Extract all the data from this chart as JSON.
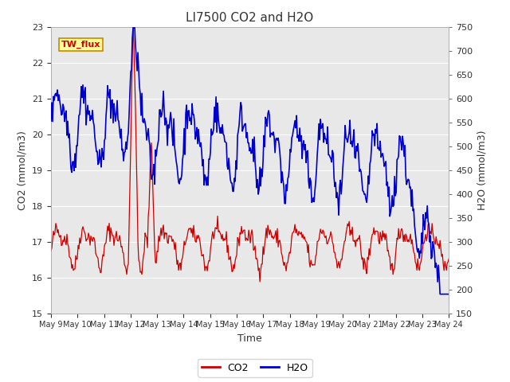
{
  "title": "LI7500 CO2 and H2O",
  "xlabel": "Time",
  "ylabel_left": "CO2 (mmol/m3)",
  "ylabel_right": "H2O (mmol/m3)",
  "ylim_left": [
    15.0,
    23.0
  ],
  "ylim_right": [
    150,
    750
  ],
  "yticks_left": [
    15.0,
    16.0,
    17.0,
    18.0,
    19.0,
    20.0,
    21.0,
    22.0,
    23.0
  ],
  "yticks_right": [
    150,
    200,
    250,
    300,
    350,
    400,
    450,
    500,
    550,
    600,
    650,
    700,
    750
  ],
  "xtick_labels": [
    "May 9",
    "May 10",
    "May 11",
    "May 12",
    "May 13",
    "May 14",
    "May 15",
    "May 16",
    "May 17",
    "May 18",
    "May 19",
    "May 20",
    "May 21",
    "May 22",
    "May 23",
    "May 24"
  ],
  "co2_color": "#cc0000",
  "h2o_color": "#0000cc",
  "plot_bg_color": "#e8e8e8",
  "fig_bg_color": "#ffffff",
  "annotation_text": "TW_flux",
  "annotation_text_color": "#cc0000",
  "annotation_bg": "#ffff99",
  "annotation_border": "#cc8800",
  "legend_co2": "CO2",
  "legend_h2o": "H2O",
  "title_fontsize": 11,
  "axis_label_fontsize": 9,
  "tick_fontsize": 8,
  "legend_fontsize": 9,
  "annotation_fontsize": 8
}
